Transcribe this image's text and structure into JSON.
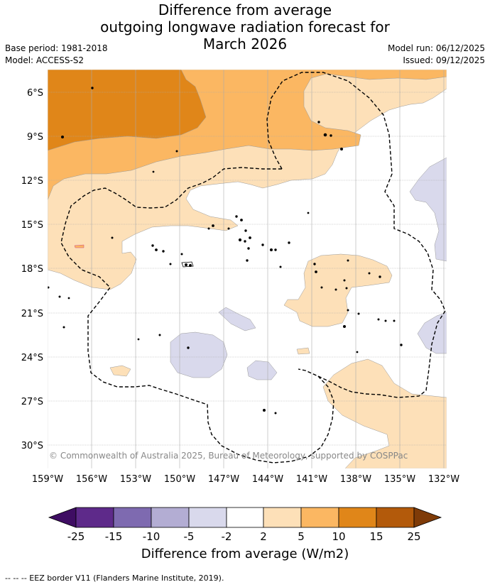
{
  "title": {
    "line1": "Difference from average",
    "line2": "outgoing longwave radiation forecast for",
    "line3": "March 2026"
  },
  "meta": {
    "base_period": "Base period: 1981-2018",
    "model": "Model: ACCESS-S2",
    "model_run": "Model run: 06/12/2025",
    "issued": "Issued: 09/12/2025"
  },
  "map": {
    "copyright": "© Commonwealth of Australia 2025, Bureau of Meteorology, supported by COSPPac",
    "lat_labels": [
      "6°S",
      "9°S",
      "12°S",
      "15°S",
      "18°S",
      "21°S",
      "24°S",
      "27°S",
      "30°S"
    ],
    "lon_labels": [
      "159°W",
      "156°W",
      "153°W",
      "150°W",
      "147°W",
      "144°W",
      "141°W",
      "138°W",
      "135°W",
      "132°W"
    ]
  },
  "colorbar": {
    "title": "Difference from average (W/m2)",
    "tick_labels": [
      "-25",
      "-15",
      "-10",
      "-5",
      "-2",
      "2",
      "5",
      "10",
      "15",
      "25"
    ],
    "colors": [
      "#3f0d63",
      "#5e2a8a",
      "#7e6ab0",
      "#b3add3",
      "#d9d9ec",
      "#ffffff",
      "#fde0b8",
      "#fbb762",
      "#e08619",
      "#b35a0b",
      "#7f3b08"
    ]
  },
  "footer": "--  --  -- EEZ border V11 (Flanders Marine Institute, 2019)."
}
